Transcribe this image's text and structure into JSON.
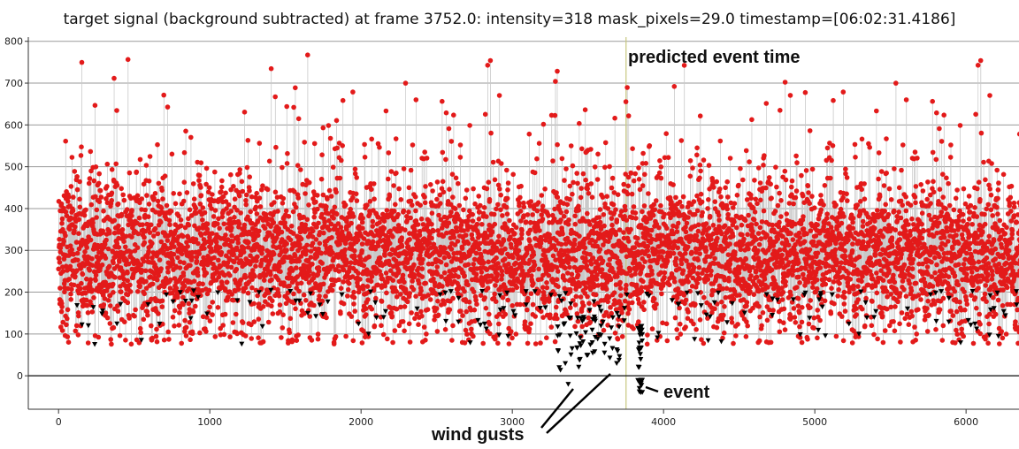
{
  "chart_data": {
    "type": "scatter",
    "title": "target signal (background subtracted) at frame 3752.0: intensity=318 mask_pixels=29.0 timestamp=[06:02:31.4186]",
    "xlabel": "",
    "ylabel": "",
    "xlim": [
      -200,
      6350
    ],
    "ylim": [
      -80,
      810
    ],
    "xticks": [
      "0",
      "1000",
      "2000",
      "3000",
      "4000",
      "5000",
      "6000"
    ],
    "yticks": [
      "0",
      "100",
      "200",
      "300",
      "400",
      "500",
      "600",
      "700",
      "800"
    ],
    "grid": "horizontal",
    "n_points": 6400,
    "baseline_mean": 285,
    "baseline_sd": 95,
    "series": [
      {
        "marker": "circle",
        "color": "#e31a1a"
      },
      {
        "marker": "triangle-down",
        "color": "#000000"
      }
    ],
    "marked_points": [
      {
        "x": 3370,
        "y": -20
      },
      {
        "x": 3690,
        "y": 30
      },
      {
        "x": 3840,
        "y": -30
      },
      {
        "x": 3850,
        "y": -10
      }
    ],
    "vertical_line": {
      "x": 3752,
      "color": "#c8c880"
    },
    "zero_line": 0,
    "annotations": {
      "predicted": "predicted event time",
      "wind": "wind gusts",
      "event": "event"
    }
  }
}
